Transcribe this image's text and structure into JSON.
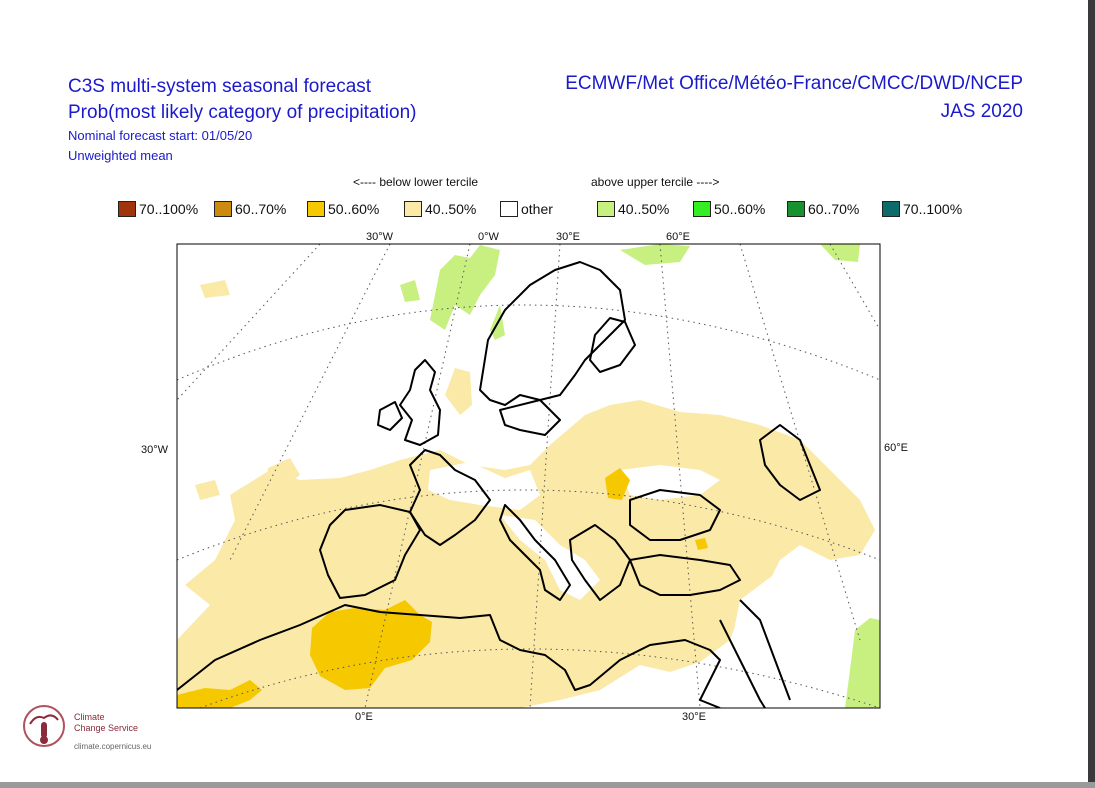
{
  "title": {
    "line1": "C3S multi-system seasonal forecast",
    "line2": "Prob(most likely category of precipitation)",
    "line3": "Nominal forecast start: 01/05/20",
    "line4": "Unweighted mean"
  },
  "systems": {
    "centres": "ECMWF/Met Office/Météo-France/CMCC/DWD/NCEP",
    "period": "JAS 2020"
  },
  "legend": {
    "below_heading": "<---- below lower tercile",
    "above_heading": "above upper tercile ---->",
    "items": [
      {
        "label": "70..100%",
        "color": "#a0340a"
      },
      {
        "label": "60..70%",
        "color": "#cc8a10"
      },
      {
        "label": "50..60%",
        "color": "#f5c800"
      },
      {
        "label": "40..50%",
        "color": "#fbe9a8"
      },
      {
        "label": "other",
        "color": "#ffffff"
      },
      {
        "label": "40..50%",
        "color": "#c8f080"
      },
      {
        "label": "50..60%",
        "color": "#33ee22"
      },
      {
        "label": "60..70%",
        "color": "#17922e"
      },
      {
        "label": "70..100%",
        "color": "#0e6b6b"
      }
    ]
  },
  "map_labels": {
    "lon_30W_top": "30°W",
    "lon_0W_top": "0°W",
    "lon_30E_top": "30°E",
    "lon_60E_top": "60°E",
    "lat_30W_left": "30°W",
    "lat_60E_right": "60°E",
    "lon_0E_bottom": "0°E",
    "lon_30E_bottom": "30°E"
  },
  "logo": {
    "name_line1": "Climate",
    "name_line2": "Change Service",
    "url": "climate.copernicus.eu"
  }
}
